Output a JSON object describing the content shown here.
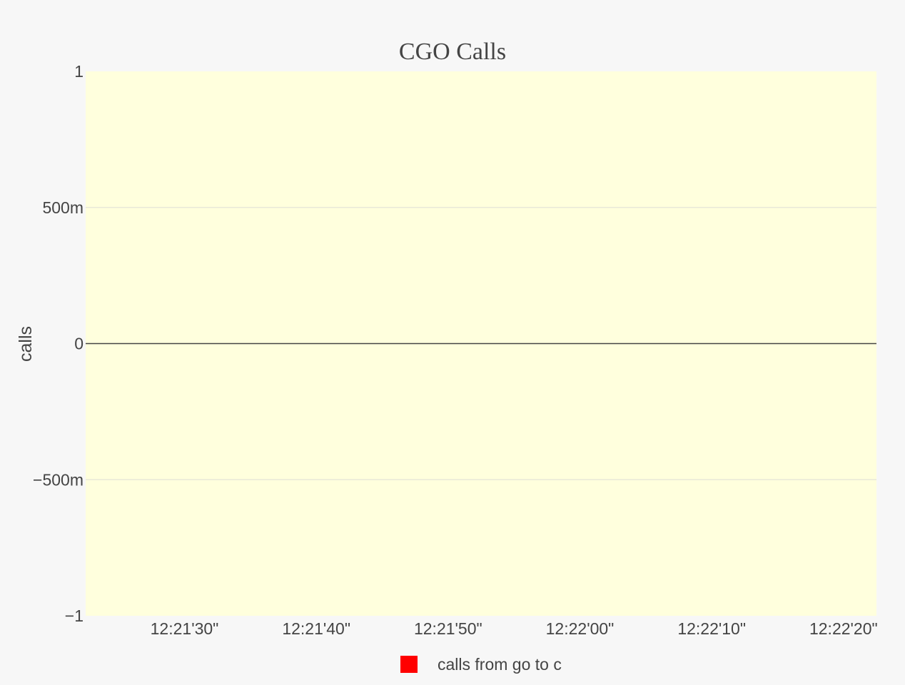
{
  "chart_data": {
    "type": "line",
    "title": "CGO Calls",
    "xlabel": "",
    "ylabel": "calls",
    "x_tick_labels": [
      "12:21'30\"",
      "12:21'40\"",
      "12:21'50\"",
      "12:22'00\"",
      "12:22'10\"",
      "12:22'20\""
    ],
    "x_tick_values": [
      30,
      40,
      50,
      60,
      70,
      80
    ],
    "xlim": [
      22.5,
      82.5
    ],
    "y_tick_labels": [
      "1",
      "500m",
      "0",
      "−500m",
      "−1"
    ],
    "y_tick_values": [
      1,
      0.5,
      0,
      -0.5,
      -1
    ],
    "ylim": [
      -1,
      1
    ],
    "grid": true,
    "legend_position": "bottom-center",
    "series": [
      {
        "name": "calls from go to c",
        "x": [],
        "values": [],
        "color": "#ff0000"
      }
    ],
    "colors": {
      "page_background": "#f7f7f7",
      "plot_background": "#ffffdd",
      "gridline": "#e8e8d8",
      "zero_line": "#444444",
      "text": "#444444"
    }
  }
}
